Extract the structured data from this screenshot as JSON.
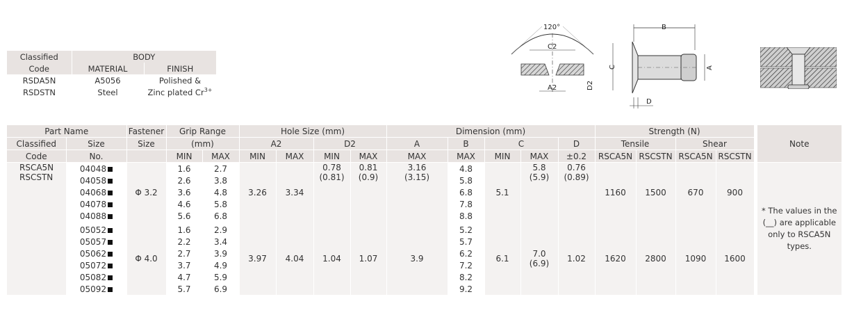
{
  "material_table": {
    "head_classified_1": "Classified",
    "head_classified_2": "Code",
    "head_body": "BODY",
    "head_material": "MATERIAL",
    "head_finish": "FINISH",
    "rows": [
      {
        "code": "RSDA5N",
        "material": "A5056",
        "finish": "Polished &"
      },
      {
        "code": "RSDSTN",
        "material": "Steel",
        "finish": "Zinc plated Cr",
        "finish_sup": "3+"
      }
    ]
  },
  "diagram": {
    "angle": "120°",
    "label_c2": "C2",
    "label_a2": "A2",
    "label_d2": "D2",
    "label_b": "B",
    "label_c": "C",
    "label_a": "A",
    "label_d": "D"
  },
  "headers": {
    "part_name": "Part Name",
    "classified_code_1": "Classified",
    "classified_code_2": "Code",
    "size_no_1": "Size",
    "size_no_2": "No.",
    "fastener_1": "Fastener",
    "fastener_2": "Size",
    "grip_1": "Grip Range",
    "grip_2": "(mm)",
    "hole_size": "Hole Size (mm)",
    "a2": "A2",
    "d2": "D2",
    "dimension": "Dimension (mm)",
    "a": "A",
    "b": "B",
    "c": "C",
    "d": "D",
    "strength": "Strength (N)",
    "tensile": "Tensile",
    "shear": "Shear",
    "note": "Note",
    "min": "MIN",
    "max": "MAX",
    "tol": "±0.2",
    "rsca5n": "RSCA5N",
    "rscstn": "RSCSTN"
  },
  "codes": [
    "RSCA5N",
    "RSCSTN"
  ],
  "groups": [
    {
      "fastener": "Φ 3.2",
      "hole_a2_min": "3.26",
      "hole_a2_max": "3.34",
      "hole_d2_min": "0.78",
      "hole_d2_max": "0.81",
      "hole_d2_min_alt": "(0.81)",
      "hole_d2_max_alt": "(0.9)",
      "a_max": "3.16",
      "a_max_alt": "(3.15)",
      "c_min": "5.1",
      "c_max": "5.8",
      "c_max_alt": "(5.9)",
      "d": "0.76",
      "d_alt": "(0.89)",
      "tensile_a5n": "1160",
      "tensile_stn": "1500",
      "shear_a5n": "670",
      "shear_stn": "900",
      "rows": [
        {
          "size": "04048",
          "grip_min": "1.6",
          "grip_max": "2.7",
          "b": "4.8"
        },
        {
          "size": "04058",
          "grip_min": "2.6",
          "grip_max": "3.8",
          "b": "5.8"
        },
        {
          "size": "04068",
          "grip_min": "3.6",
          "grip_max": "4.8",
          "b": "6.8"
        },
        {
          "size": "04078",
          "grip_min": "4.6",
          "grip_max": "5.8",
          "b": "7.8"
        },
        {
          "size": "04088",
          "grip_min": "5.6",
          "grip_max": "6.8",
          "b": "8.8"
        }
      ]
    },
    {
      "fastener": "Φ 4.0",
      "hole_a2_min": "3.97",
      "hole_a2_max": "4.04",
      "hole_d2_min": "1.04",
      "hole_d2_max": "1.07",
      "a_max": "3.9",
      "c_min": "6.1",
      "c_max": "7.0",
      "c_max_alt": "(6.9)",
      "d": "1.02",
      "tensile_a5n": "1620",
      "tensile_stn": "2800",
      "shear_a5n": "1090",
      "shear_stn": "1600",
      "rows": [
        {
          "size": "05052",
          "grip_min": "1.6",
          "grip_max": "2.9",
          "b": "5.2"
        },
        {
          "size": "05057",
          "grip_min": "2.2",
          "grip_max": "3.4",
          "b": "5.7"
        },
        {
          "size": "05062",
          "grip_min": "2.7",
          "grip_max": "3.9",
          "b": "6.2"
        },
        {
          "size": "05072",
          "grip_min": "3.7",
          "grip_max": "4.9",
          "b": "7.2"
        },
        {
          "size": "05082",
          "grip_min": "4.7",
          "grip_max": "5.9",
          "b": "8.2"
        },
        {
          "size": "05092",
          "grip_min": "5.7",
          "grip_max": "6.9",
          "b": "9.2"
        }
      ]
    }
  ],
  "note_lines": [
    "* The values in the",
    "(__) are applicable",
    "only to RSCA5N",
    "types."
  ]
}
